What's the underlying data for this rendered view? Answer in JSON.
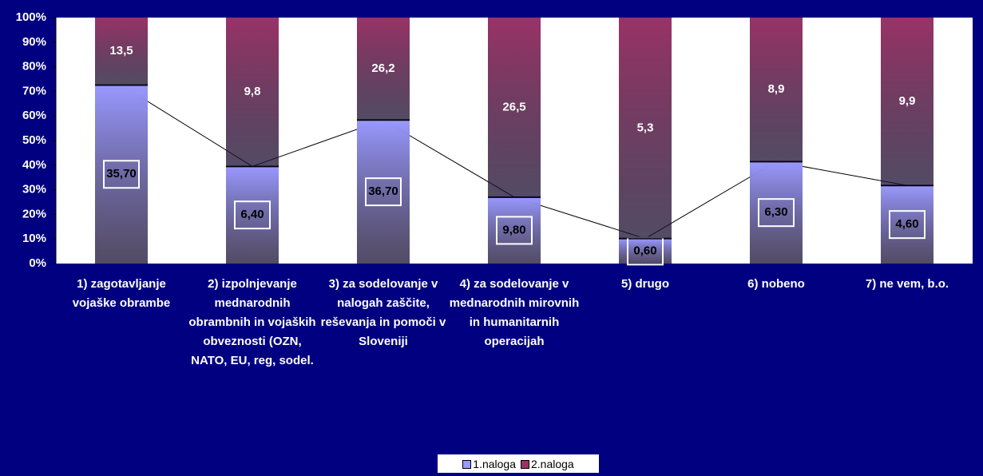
{
  "chart_data": {
    "type": "bar",
    "stacked": "percent",
    "categories": [
      "1) zagotavljanje vojaške obrambe",
      "2) izpolnjevanje mednarodnih obrambnih in vojaških obveznosti (OZN, NATO, EU, reg, sodel.",
      "3) za sodelovanje v nalogah zaščite, reševanja in pomoči v Sloveniji",
      "4) za sodelovanje v mednarodnih mirovnih in humanitarnih operacijah",
      "5) drugo",
      "6) nobeno",
      "7) ne vem, b.o."
    ],
    "series": [
      {
        "name": "1.naloga",
        "color": "#9999ff",
        "values": [
          35.7,
          6.4,
          36.7,
          9.8,
          0.6,
          6.3,
          4.6
        ],
        "value_labels": [
          "35,70",
          "6,40",
          "36,70",
          "9,80",
          "0,60",
          "6,30",
          "4,60"
        ]
      },
      {
        "name": "2.naloga",
        "color": "#993366",
        "values": [
          13.5,
          9.8,
          26.2,
          26.5,
          5.3,
          8.9,
          9.9
        ],
        "value_labels": [
          "13,5",
          "9,8",
          "26,2",
          "26,5",
          "5,3",
          "8,9",
          "9,9"
        ]
      }
    ],
    "ylim": [
      0,
      100
    ],
    "yticks": [
      {
        "value": 0,
        "label": "0%"
      },
      {
        "value": 10,
        "label": "10%"
      },
      {
        "value": 20,
        "label": "20%"
      },
      {
        "value": 30,
        "label": "30%"
      },
      {
        "value": 40,
        "label": "40%"
      },
      {
        "value": 50,
        "label": "50%"
      },
      {
        "value": 60,
        "label": "60%"
      },
      {
        "value": 70,
        "label": "70%"
      },
      {
        "value": 80,
        "label": "80%"
      },
      {
        "value": 90,
        "label": "90%"
      },
      {
        "value": 100,
        "label": "100%"
      }
    ],
    "legend": "bottom"
  }
}
